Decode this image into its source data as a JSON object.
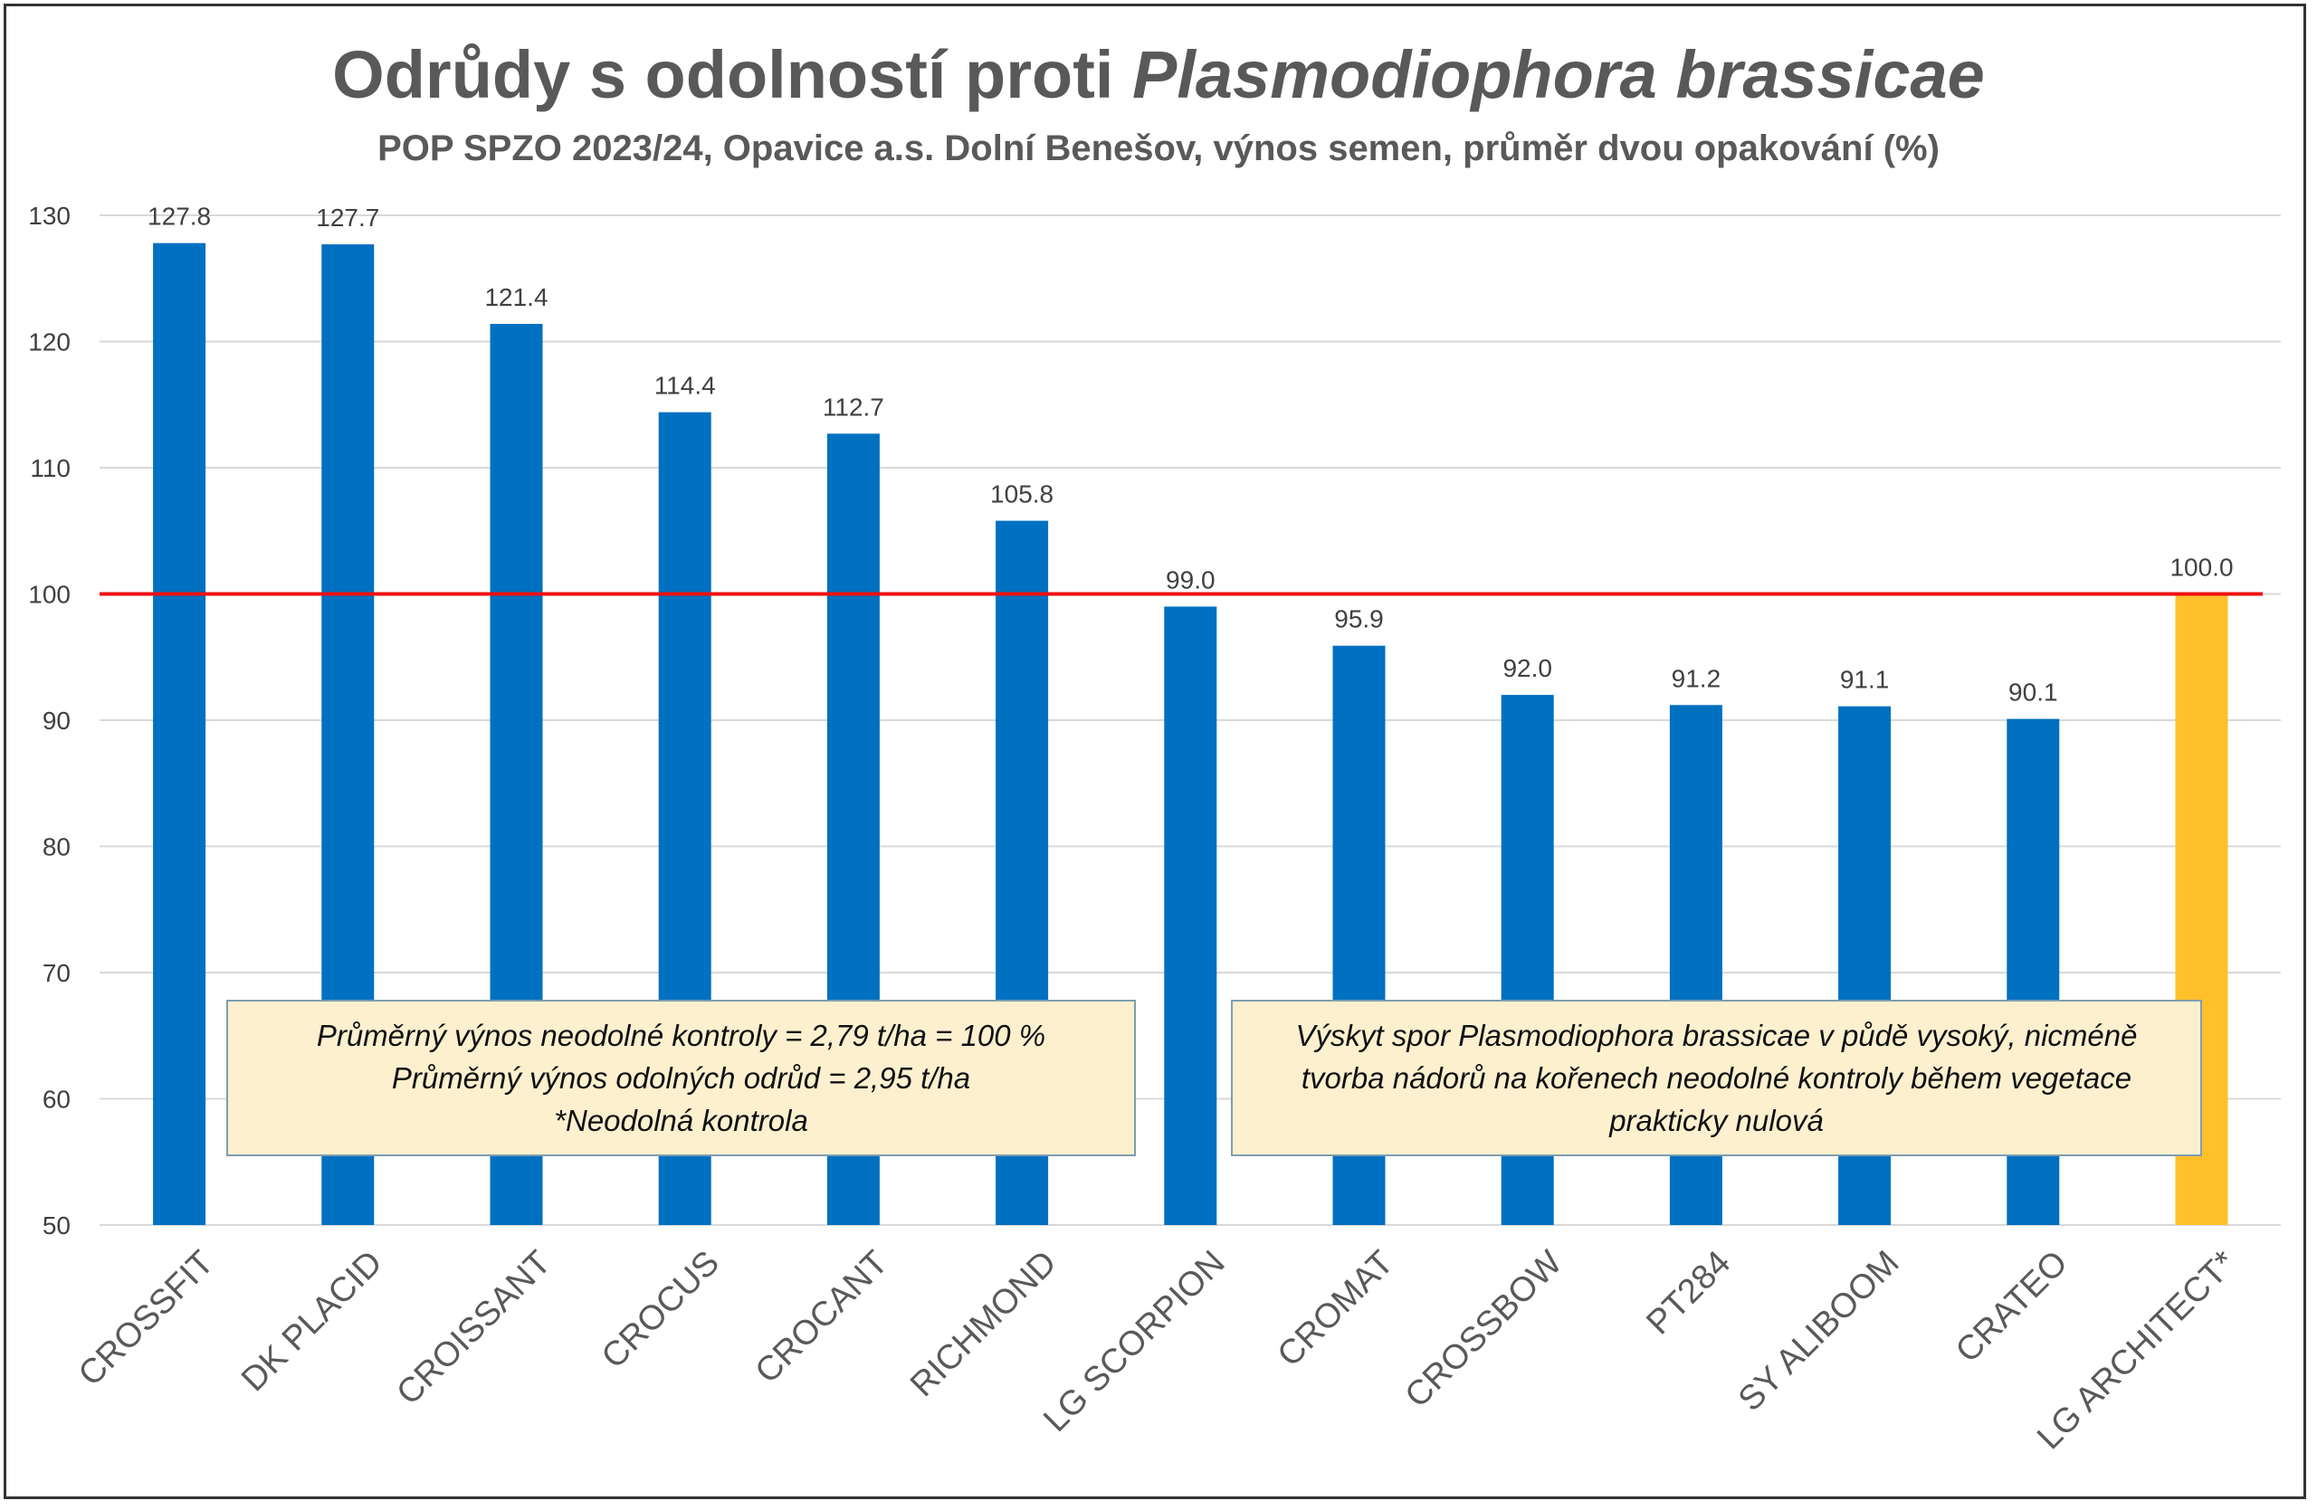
{
  "title": {
    "regular": "Odrůdy s odolností proti ",
    "italic": "Plasmodiophora brassicae"
  },
  "subtitle": "POP SPZO 2023/24, Opavice a.s. Dolní Benešov, výnos semen, průměr dvou opakování (%)",
  "notes": {
    "left": [
      "Průměrný výnos neodolné kontroly = 2,79 t/ha = 100 %",
      "Průměrný výnos odolných odrůd = 2,95 t/ha",
      "*Neodolná kontrola"
    ],
    "right": [
      "Výskyt spor Plasmodiophora brassicae v půdě vysoký, nicméně",
      "tvorba nádorů na kořenech neodolné kontroly během vegetace",
      "prakticky nulová"
    ]
  },
  "chart_data": {
    "type": "bar",
    "title": "Odrůdy s odolností proti Plasmodiophora brassicae",
    "subtitle": "POP SPZO 2023/24, Opavice a.s. Dolní Benešov, výnos semen, průměr dvou opakování (%)",
    "categories": [
      "CROSSFIT",
      "DK PLACID",
      "CROISSANT",
      "CROCUS",
      "CROCANT",
      "RICHMOND",
      "LG SCORPION",
      "CROMAT",
      "CROSSBOW",
      "PT284",
      "SY ALIBOOM",
      "CRATEO",
      "LG ARCHITECT*"
    ],
    "values": [
      127.8,
      127.7,
      121.4,
      114.4,
      112.7,
      105.8,
      99.0,
      95.9,
      92.0,
      91.2,
      91.1,
      90.1,
      100.0
    ],
    "value_labels": [
      "127.8",
      "127.7",
      "121.4",
      "114.4",
      "112.7",
      "105.8",
      "99.0",
      "95.9",
      "92.0",
      "91.2",
      "91.1",
      "90.1",
      "100.0"
    ],
    "ylim": [
      50,
      130
    ],
    "yticks": [
      "50",
      "60",
      "70",
      "80",
      "90",
      "100",
      "110",
      "120",
      "130"
    ],
    "reference_line": 100,
    "grid": true,
    "colors": {
      "bar": "#0070c0",
      "control_bar": "#ffc02a",
      "reference_line": "#ee1111",
      "grid": "#d9d9d9",
      "text": "#404040"
    }
  }
}
